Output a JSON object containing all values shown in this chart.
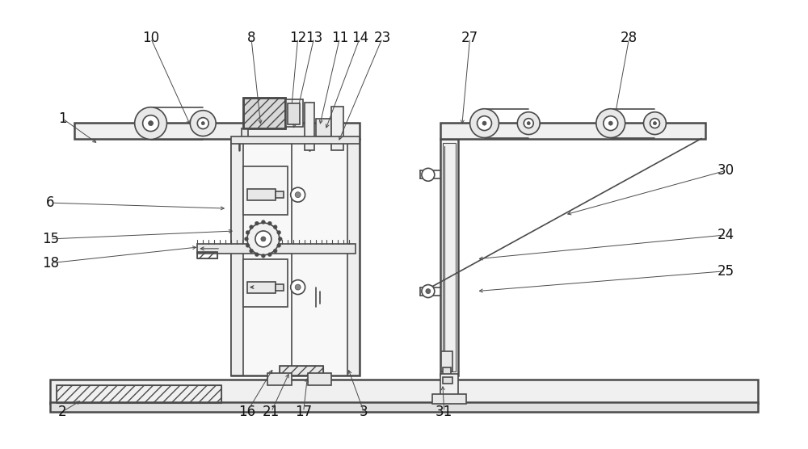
{
  "bg_color": "#ffffff",
  "line_color": "#4a4a4a",
  "label_color": "#111111",
  "label_fontsize": 12,
  "figsize": [
    10.0,
    5.56
  ],
  "dpi": 100,
  "annotations": [
    [
      "1",
      75,
      410,
      120,
      378
    ],
    [
      "2",
      75,
      45,
      100,
      60
    ],
    [
      "3",
      450,
      45,
      430,
      100
    ],
    [
      "6",
      60,
      305,
      280,
      298
    ],
    [
      "8",
      310,
      510,
      322,
      400
    ],
    [
      "10",
      185,
      510,
      235,
      400
    ],
    [
      "11",
      420,
      510,
      395,
      400
    ],
    [
      "12",
      368,
      510,
      358,
      400
    ],
    [
      "13",
      388,
      510,
      362,
      395
    ],
    [
      "14",
      445,
      510,
      402,
      395
    ],
    [
      "15",
      60,
      260,
      290,
      270
    ],
    [
      "16",
      305,
      45,
      338,
      100
    ],
    [
      "17",
      375,
      45,
      380,
      90
    ],
    [
      "18",
      60,
      230,
      245,
      250
    ],
    [
      "21",
      335,
      45,
      358,
      95
    ],
    [
      "23",
      473,
      510,
      418,
      380
    ],
    [
      "24",
      900,
      265,
      590,
      235
    ],
    [
      "25",
      900,
      220,
      590,
      195
    ],
    [
      "27",
      582,
      510,
      572,
      400
    ],
    [
      "28",
      780,
      510,
      760,
      400
    ],
    [
      "30",
      900,
      345,
      700,
      290
    ],
    [
      "31",
      550,
      45,
      548,
      80
    ]
  ]
}
